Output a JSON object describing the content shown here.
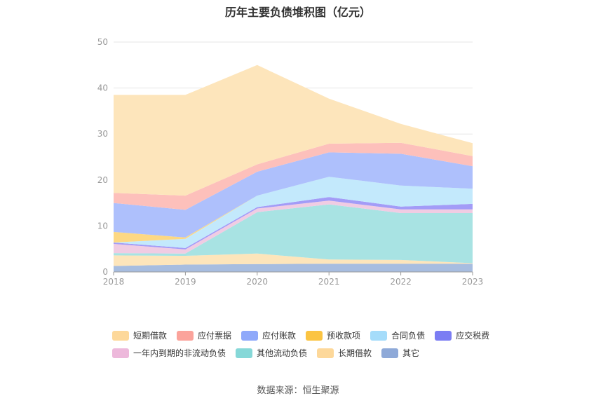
{
  "chart_data": {
    "type": "area",
    "stacked": true,
    "title": "历年主要负债堆积图（亿元）",
    "x": [
      "2018",
      "2019",
      "2020",
      "2021",
      "2022",
      "2023"
    ],
    "ylim": [
      0,
      50
    ],
    "yticks": [
      0,
      10,
      20,
      30,
      40,
      50
    ],
    "grid": true,
    "legend_position": "bottom",
    "series": [
      {
        "name": "其它",
        "color": "#a7bde0",
        "values": [
          1.3,
          1.6,
          1.7,
          1.8,
          1.8,
          1.8
        ]
      },
      {
        "name": "长期借款",
        "color": "#fde5bb",
        "values": [
          2.3,
          1.9,
          2.3,
          0.9,
          0.8,
          0.1
        ]
      },
      {
        "name": "其他流动负债",
        "color": "#a8e3e3",
        "values": [
          0.5,
          0.5,
          9.0,
          12.0,
          10.2,
          10.9
        ]
      },
      {
        "name": "一年内到期的非流动负债",
        "color": "#f0cce3",
        "values": [
          2.0,
          0.9,
          0.8,
          0.8,
          0.8,
          0.8
        ]
      },
      {
        "name": "应交税费",
        "color": "#a39cf7",
        "values": [
          0.3,
          0.3,
          0.3,
          0.8,
          0.6,
          1.2
        ]
      },
      {
        "name": "合同负债",
        "color": "#c3e9fc",
        "values": [
          0,
          2.0,
          2.5,
          4.4,
          4.6,
          3.3
        ]
      },
      {
        "name": "预收款项",
        "color": "#fdd883",
        "values": [
          2.3,
          0.3,
          0,
          0,
          0,
          0
        ]
      },
      {
        "name": "应付账款",
        "color": "#aec0fc",
        "values": [
          6.3,
          6.0,
          5.2,
          5.3,
          6.9,
          4.9
        ]
      },
      {
        "name": "应付票据",
        "color": "#fdc0bb",
        "values": [
          2.2,
          3.1,
          1.6,
          1.9,
          2.4,
          2.2
        ]
      },
      {
        "name": "短期借款",
        "color": "#fde5bb",
        "values": [
          21.3,
          21.9,
          21.6,
          9.8,
          4.1,
          2.8
        ]
      }
    ]
  },
  "legend": {
    "row1": [
      {
        "label": "短期借款",
        "color": "#fdd89a"
      },
      {
        "label": "应付票据",
        "color": "#fba39b"
      },
      {
        "label": "应付账款",
        "color": "#8fa9fa"
      },
      {
        "label": "预收款项",
        "color": "#fbc442"
      },
      {
        "label": "合同负债",
        "color": "#a5dcfa"
      },
      {
        "label": "应交税费",
        "color": "#7b7df3"
      }
    ],
    "row2": [
      {
        "label": "一年内到期的非流动负债",
        "color": "#edb8db"
      },
      {
        "label": "其他流动负债",
        "color": "#86d8d8"
      },
      {
        "label": "长期借款",
        "color": "#fdd89a"
      },
      {
        "label": "其它",
        "color": "#8ea9d8"
      }
    ]
  },
  "source": "数据来源：恒生聚源"
}
